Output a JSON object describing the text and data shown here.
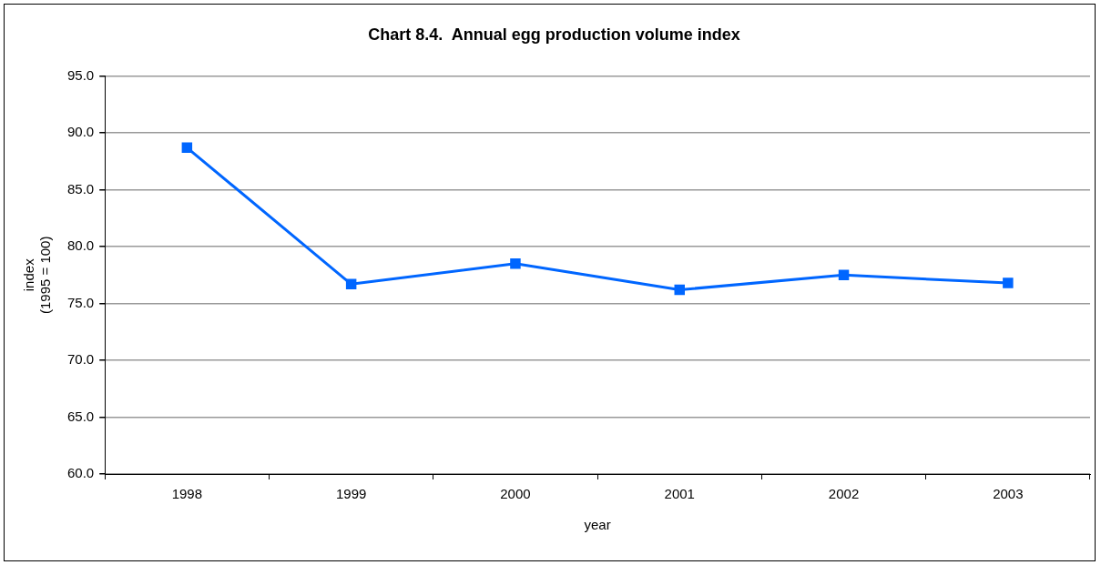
{
  "chart_data": {
    "type": "line",
    "title": "Chart 8.4.  Annual egg production volume index",
    "xlabel": "year",
    "ylabel": "index\n(1995 = 100)",
    "categories": [
      "1998",
      "1999",
      "2000",
      "2001",
      "2002",
      "2003"
    ],
    "series": [
      {
        "color": "#0066ff",
        "values": [
          88.7,
          76.7,
          78.5,
          76.2,
          77.5,
          76.8
        ]
      }
    ],
    "ylim": [
      60,
      95
    ],
    "yticks": [
      {
        "value": 60,
        "label": "60.0"
      },
      {
        "value": 65,
        "label": "65.0"
      },
      {
        "value": 70,
        "label": "70.0"
      },
      {
        "value": 75,
        "label": "75.0"
      },
      {
        "value": 80,
        "label": "80.0"
      },
      {
        "value": 85,
        "label": "85.0"
      },
      {
        "value": 90,
        "label": "90.0"
      },
      {
        "value": 95,
        "label": "95.0"
      }
    ],
    "grid": "y",
    "legend": false,
    "marker": "square",
    "line_style": "solid"
  }
}
